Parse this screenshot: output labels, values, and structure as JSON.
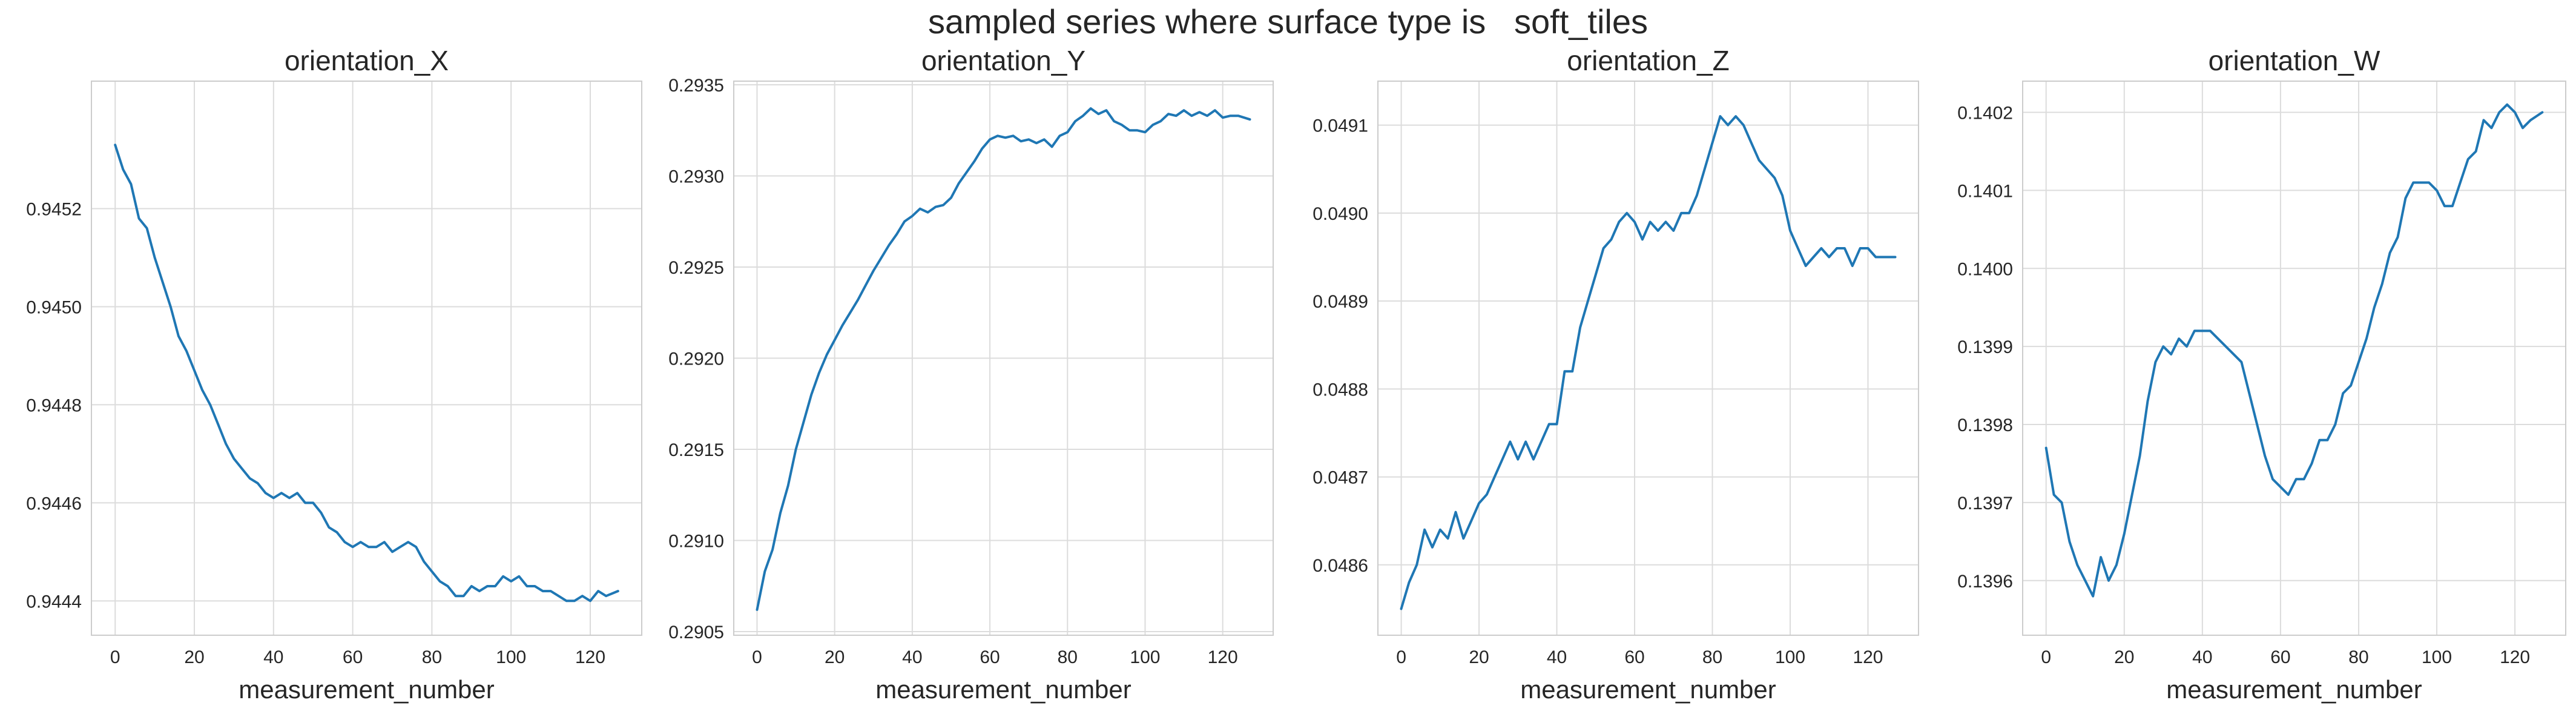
{
  "figure": {
    "suptitle": "sampled series where surface type is   soft_tiles",
    "colors": {
      "line": "#1f77b4",
      "grid": "#dcdcdc",
      "spine": "#cccccc",
      "text": "#262626"
    }
  },
  "chart_data": [
    {
      "type": "line",
      "title": "orientation_X",
      "xlabel": "measurement_number",
      "ylabel": "",
      "xlim": [
        -6,
        133
      ],
      "ylim": [
        0.94433,
        0.94546
      ],
      "xticks": [
        0,
        20,
        40,
        60,
        80,
        100,
        120
      ],
      "xtick_labels": [
        "0",
        "20",
        "40",
        "60",
        "80",
        "100",
        "120"
      ],
      "yticks": [
        0.9444,
        0.9446,
        0.9448,
        0.945,
        0.9452
      ],
      "ytick_labels": [
        "0.9444",
        "0.9446",
        "0.9448",
        "0.9450",
        "0.9452"
      ],
      "grid": true,
      "series": [
        {
          "x": [
            0,
            2,
            4,
            6,
            8,
            10,
            12,
            14,
            16,
            18,
            20,
            22,
            24,
            26,
            28,
            30,
            32,
            34,
            36,
            38,
            40,
            42,
            44,
            46,
            48,
            50,
            52,
            54,
            56,
            58,
            60,
            62,
            64,
            66,
            68,
            70,
            72,
            74,
            76,
            78,
            80,
            82,
            84,
            86,
            88,
            90,
            92,
            94,
            96,
            98,
            100,
            102,
            104,
            106,
            108,
            110,
            112,
            114,
            116,
            118,
            120,
            122,
            124,
            127
          ],
          "y": [
            0.94533,
            0.94528,
            0.94525,
            0.94518,
            0.94516,
            0.9451,
            0.94505,
            0.945,
            0.94494,
            0.94491,
            0.94487,
            0.94483,
            0.9448,
            0.94476,
            0.94472,
            0.94469,
            0.94467,
            0.94465,
            0.94464,
            0.94462,
            0.94461,
            0.94462,
            0.94461,
            0.94462,
            0.9446,
            0.9446,
            0.94458,
            0.94455,
            0.94454,
            0.94452,
            0.94451,
            0.94452,
            0.94451,
            0.94451,
            0.94452,
            0.9445,
            0.94451,
            0.94452,
            0.94451,
            0.94448,
            0.94446,
            0.94444,
            0.94443,
            0.94441,
            0.94441,
            0.94443,
            0.94442,
            0.94443,
            0.94443,
            0.94445,
            0.94444,
            0.94445,
            0.94443,
            0.94443,
            0.94442,
            0.94442,
            0.94441,
            0.9444,
            0.9444,
            0.94441,
            0.9444,
            0.94442,
            0.94441,
            0.94442
          ]
        }
      ]
    },
    {
      "type": "line",
      "title": "orientation_Y",
      "xlabel": "measurement_number",
      "ylabel": "",
      "xlim": [
        -6,
        133
      ],
      "ylim": [
        0.29048,
        0.29352
      ],
      "xticks": [
        0,
        20,
        40,
        60,
        80,
        100,
        120
      ],
      "xtick_labels": [
        "0",
        "20",
        "40",
        "60",
        "80",
        "100",
        "120"
      ],
      "yticks": [
        0.2905,
        0.291,
        0.2915,
        0.292,
        0.2925,
        0.293,
        0.2935
      ],
      "ytick_labels": [
        "0.2905",
        "0.2910",
        "0.2915",
        "0.2920",
        "0.2925",
        "0.2930",
        "0.2935"
      ],
      "grid": true,
      "series": [
        {
          "x": [
            0,
            2,
            4,
            6,
            8,
            10,
            12,
            14,
            16,
            18,
            20,
            22,
            24,
            26,
            28,
            30,
            32,
            34,
            36,
            38,
            40,
            42,
            44,
            46,
            48,
            50,
            52,
            54,
            56,
            58,
            60,
            62,
            64,
            66,
            68,
            70,
            72,
            74,
            76,
            78,
            80,
            82,
            84,
            86,
            88,
            90,
            92,
            94,
            96,
            98,
            100,
            102,
            104,
            106,
            108,
            110,
            112,
            114,
            116,
            118,
            120,
            122,
            124,
            127
          ],
          "y": [
            0.29062,
            0.29083,
            0.29095,
            0.29115,
            0.2913,
            0.2915,
            0.29165,
            0.2918,
            0.29192,
            0.29202,
            0.2921,
            0.29218,
            0.29225,
            0.29232,
            0.2924,
            0.29248,
            0.29255,
            0.29262,
            0.29268,
            0.29275,
            0.29278,
            0.29282,
            0.2928,
            0.29283,
            0.29284,
            0.29288,
            0.29296,
            0.29302,
            0.29308,
            0.29315,
            0.2932,
            0.29322,
            0.29321,
            0.29322,
            0.29319,
            0.2932,
            0.29318,
            0.2932,
            0.29316,
            0.29322,
            0.29324,
            0.2933,
            0.29333,
            0.29337,
            0.29334,
            0.29336,
            0.2933,
            0.29328,
            0.29325,
            0.29325,
            0.29324,
            0.29328,
            0.2933,
            0.29334,
            0.29333,
            0.29336,
            0.29333,
            0.29335,
            0.29333,
            0.29336,
            0.29332,
            0.29333,
            0.29333,
            0.29331
          ]
        }
      ]
    },
    {
      "type": "line",
      "title": "orientation_Z",
      "xlabel": "measurement_number",
      "ylabel": "",
      "xlim": [
        -6,
        133
      ],
      "ylim": [
        0.04852,
        0.04915
      ],
      "xticks": [
        0,
        20,
        40,
        60,
        80,
        100,
        120
      ],
      "xtick_labels": [
        "0",
        "20",
        "40",
        "60",
        "80",
        "100",
        "120"
      ],
      "yticks": [
        0.0486,
        0.0487,
        0.0488,
        0.0489,
        0.049,
        0.0491
      ],
      "ytick_labels": [
        "0.0486",
        "0.0487",
        "0.0488",
        "0.0489",
        "0.0490",
        "0.0491"
      ],
      "grid": true,
      "series": [
        {
          "x": [
            0,
            2,
            4,
            6,
            8,
            10,
            12,
            14,
            16,
            18,
            20,
            22,
            24,
            26,
            28,
            30,
            32,
            34,
            36,
            38,
            40,
            42,
            44,
            46,
            48,
            50,
            52,
            54,
            56,
            58,
            60,
            62,
            64,
            66,
            68,
            70,
            72,
            74,
            76,
            78,
            80,
            82,
            84,
            86,
            88,
            90,
            92,
            94,
            96,
            98,
            100,
            102,
            104,
            106,
            108,
            110,
            112,
            114,
            116,
            118,
            120,
            122,
            124,
            127
          ],
          "y": [
            0.04855,
            0.04858,
            0.0486,
            0.04864,
            0.04862,
            0.04864,
            0.04863,
            0.04866,
            0.04863,
            0.04865,
            0.04867,
            0.04868,
            0.0487,
            0.04872,
            0.04874,
            0.04872,
            0.04874,
            0.04872,
            0.04874,
            0.04876,
            0.04876,
            0.04882,
            0.04882,
            0.04887,
            0.0489,
            0.04893,
            0.04896,
            0.04897,
            0.04899,
            0.049,
            0.04899,
            0.04897,
            0.04899,
            0.04898,
            0.04899,
            0.04898,
            0.049,
            0.049,
            0.04902,
            0.04905,
            0.04908,
            0.04911,
            0.0491,
            0.04911,
            0.0491,
            0.04908,
            0.04906,
            0.04905,
            0.04904,
            0.04902,
            0.04898,
            0.04896,
            0.04894,
            0.04895,
            0.04896,
            0.04895,
            0.04896,
            0.04896,
            0.04894,
            0.04896,
            0.04896,
            0.04895,
            0.04895,
            0.04895
          ]
        }
      ]
    },
    {
      "type": "line",
      "title": "orientation_W",
      "xlabel": "measurement_number",
      "ylabel": "",
      "xlim": [
        -6,
        133
      ],
      "ylim": [
        0.13953,
        0.14024
      ],
      "xticks": [
        0,
        20,
        40,
        60,
        80,
        100,
        120
      ],
      "xtick_labels": [
        "0",
        "20",
        "40",
        "60",
        "80",
        "100",
        "120"
      ],
      "yticks": [
        0.1396,
        0.1397,
        0.1398,
        0.1399,
        0.14,
        0.1401,
        0.1402
      ],
      "ytick_labels": [
        "0.1396",
        "0.1397",
        "0.1398",
        "0.1399",
        "0.1400",
        "0.1401",
        "0.1402"
      ],
      "grid": true,
      "series": [
        {
          "x": [
            0,
            2,
            4,
            6,
            8,
            10,
            12,
            14,
            16,
            18,
            20,
            22,
            24,
            26,
            28,
            30,
            32,
            34,
            36,
            38,
            40,
            42,
            44,
            46,
            48,
            50,
            52,
            54,
            56,
            58,
            60,
            62,
            64,
            66,
            68,
            70,
            72,
            74,
            76,
            78,
            80,
            82,
            84,
            86,
            88,
            90,
            92,
            94,
            96,
            98,
            100,
            102,
            104,
            106,
            108,
            110,
            112,
            114,
            116,
            118,
            120,
            122,
            124,
            127
          ],
          "y": [
            0.13977,
            0.13971,
            0.1397,
            0.13965,
            0.13962,
            0.1396,
            0.13958,
            0.13963,
            0.1396,
            0.13962,
            0.13966,
            0.13971,
            0.13976,
            0.13983,
            0.13988,
            0.1399,
            0.13989,
            0.13991,
            0.1399,
            0.13992,
            0.13992,
            0.13992,
            0.13991,
            0.1399,
            0.13989,
            0.13988,
            0.13984,
            0.1398,
            0.13976,
            0.13973,
            0.13972,
            0.13971,
            0.13973,
            0.13973,
            0.13975,
            0.13978,
            0.13978,
            0.1398,
            0.13984,
            0.13985,
            0.13988,
            0.13991,
            0.13995,
            0.13998,
            0.14002,
            0.14004,
            0.14009,
            0.14011,
            0.14011,
            0.14011,
            0.1401,
            0.14008,
            0.14008,
            0.14011,
            0.14014,
            0.14015,
            0.14019,
            0.14018,
            0.1402,
            0.14021,
            0.1402,
            0.14018,
            0.14019,
            0.1402
          ]
        }
      ]
    }
  ]
}
